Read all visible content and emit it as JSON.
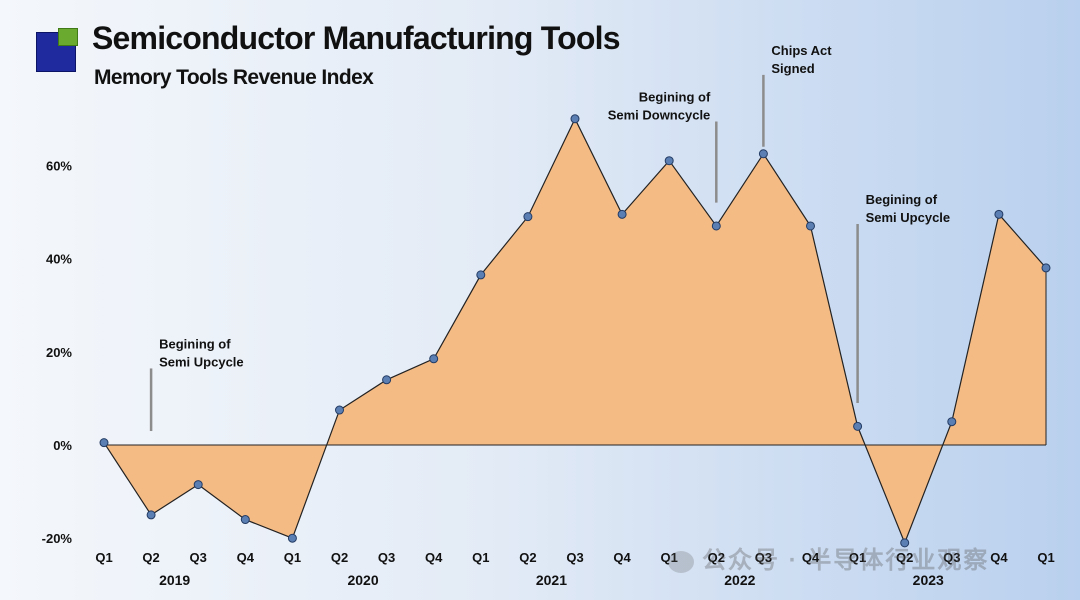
{
  "header": {
    "title": "Semiconductor Manufacturing Tools",
    "subtitle": "Memory Tools Revenue Index"
  },
  "watermark": "公众号 · 半导体行业观察",
  "colors": {
    "area": "#f5bb85",
    "line": "#222222",
    "marker": "#5b7fb3",
    "annotation_line": "#8c8c8c"
  },
  "chart_data": {
    "type": "area",
    "title": "Memory Tools Revenue Index",
    "xlabel": "",
    "ylabel": "",
    "ylim": [
      -20,
      70
    ],
    "yticks": [
      -20,
      0,
      20,
      40,
      60
    ],
    "ytick_labels": [
      "-20%",
      "0%",
      "20%",
      "40%",
      "60%"
    ],
    "grid": false,
    "categories": [
      "Q1 2019",
      "Q2 2019",
      "Q3 2019",
      "Q4 2019",
      "Q1 2020",
      "Q2 2020",
      "Q3 2020",
      "Q4 2020",
      "Q1 2021",
      "Q2 2021",
      "Q3 2021",
      "Q4 2021",
      "Q1 2022",
      "Q2 2022",
      "Q3 2022",
      "Q4 2022",
      "Q1 2023",
      "Q2 2023",
      "Q3 2023",
      "Q4 2023",
      "Q1 2024"
    ],
    "quarter_labels": [
      "Q1",
      "Q2",
      "Q3",
      "Q4",
      "Q1",
      "Q2",
      "Q3",
      "Q4",
      "Q1",
      "Q2",
      "Q3",
      "Q4",
      "Q1",
      "Q2",
      "Q3",
      "Q4",
      "Q1",
      "Q2",
      "Q3",
      "Q4",
      "Q1"
    ],
    "years": [
      {
        "label": "2019",
        "start": 0,
        "end": 3
      },
      {
        "label": "2020",
        "start": 4,
        "end": 7
      },
      {
        "label": "2021",
        "start": 8,
        "end": 11
      },
      {
        "label": "2022",
        "start": 12,
        "end": 15
      },
      {
        "label": "2023",
        "start": 16,
        "end": 19
      }
    ],
    "series": [
      {
        "values": [
          0.5,
          -15,
          -8.5,
          -16,
          -20,
          7.5,
          14,
          18.5,
          36.5,
          49,
          70,
          49.5,
          61,
          47,
          62.5,
          47,
          4,
          -21,
          5,
          49.5,
          38
        ]
      }
    ],
    "annotations": [
      {
        "lines": [
          "Begining of",
          "Semi Upcycle"
        ],
        "index": 1,
        "y_top": 16,
        "y_bottom": 3
      },
      {
        "lines": [
          "Begining of",
          "Semi Downcycle"
        ],
        "index": 13,
        "y_top": 69,
        "y_bottom": 52
      },
      {
        "lines": [
          "Chips Act",
          "Signed"
        ],
        "index": 14,
        "y_top": 79,
        "y_bottom": 64
      },
      {
        "lines": [
          "Begining of",
          "Semi Upcycle"
        ],
        "index": 16,
        "y_top": 47,
        "y_bottom": 9
      }
    ]
  }
}
